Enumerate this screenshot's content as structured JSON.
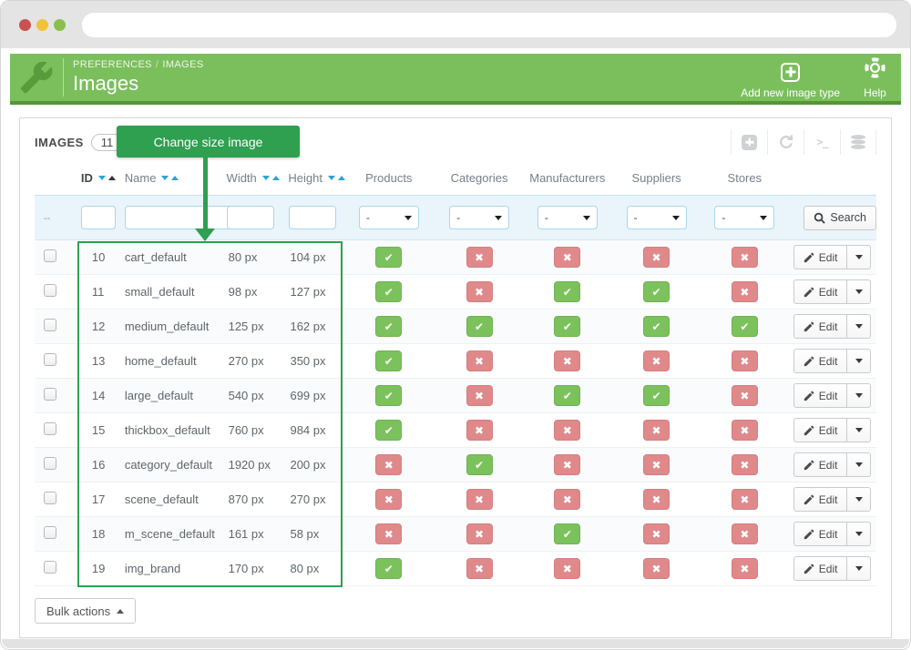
{
  "browser": {
    "url_value": "",
    "traffic_light_colors": {
      "close": "#c9524e",
      "minimize": "#f0c33c",
      "maximize": "#8abf4d"
    }
  },
  "header": {
    "breadcrumb": {
      "section": "PREFERENCES",
      "separator": "/",
      "page": "IMAGES"
    },
    "title": "Images",
    "add_button_label": "Add new image type",
    "help_label": "Help"
  },
  "annotation": {
    "tooltip_label": "Change size image",
    "color": "#2f9f50"
  },
  "panel": {
    "title": "IMAGES",
    "count_badge": "11",
    "toolbar": {
      "icons": [
        "add-icon",
        "refresh-icon",
        "terminal-icon",
        "database-icon"
      ],
      "terminal_glyph": ">_"
    }
  },
  "table": {
    "columns": [
      {
        "label": "ID",
        "sortable": true,
        "sorted": "asc"
      },
      {
        "label": "Name",
        "sortable": true
      },
      {
        "label": "Width",
        "sortable": true
      },
      {
        "label": "Height",
        "sortable": true
      },
      {
        "label": "Products",
        "sortable": false
      },
      {
        "label": "Categories",
        "sortable": false
      },
      {
        "label": "Manufacturers",
        "sortable": false
      },
      {
        "label": "Suppliers",
        "sortable": false
      },
      {
        "label": "Stores",
        "sortable": false
      }
    ],
    "filter": {
      "row_marker": "--",
      "select_value": "-",
      "search_button_label": "Search"
    },
    "edit_button_label": "Edit",
    "rows": [
      {
        "id": "10",
        "name": "cart_default",
        "width": "80 px",
        "height": "104 px",
        "flags": [
          true,
          false,
          false,
          false,
          false
        ]
      },
      {
        "id": "11",
        "name": "small_default",
        "width": "98 px",
        "height": "127 px",
        "flags": [
          true,
          false,
          true,
          true,
          false
        ]
      },
      {
        "id": "12",
        "name": "medium_default",
        "width": "125 px",
        "height": "162 px",
        "flags": [
          true,
          true,
          true,
          true,
          true
        ]
      },
      {
        "id": "13",
        "name": "home_default",
        "width": "270 px",
        "height": "350 px",
        "flags": [
          true,
          false,
          false,
          false,
          false
        ]
      },
      {
        "id": "14",
        "name": "large_default",
        "width": "540 px",
        "height": "699 px",
        "flags": [
          true,
          false,
          true,
          true,
          false
        ]
      },
      {
        "id": "15",
        "name": "thickbox_default",
        "width": "760 px",
        "height": "984 px",
        "flags": [
          true,
          false,
          false,
          false,
          false
        ]
      },
      {
        "id": "16",
        "name": "category_default",
        "width": "1920 px",
        "height": "200 px",
        "flags": [
          false,
          true,
          false,
          false,
          false
        ]
      },
      {
        "id": "17",
        "name": "scene_default",
        "width": "870 px",
        "height": "270 px",
        "flags": [
          false,
          false,
          false,
          false,
          false
        ]
      },
      {
        "id": "18",
        "name": "m_scene_default",
        "width": "161 px",
        "height": "58 px",
        "flags": [
          false,
          false,
          true,
          false,
          false
        ]
      },
      {
        "id": "19",
        "name": "img_brand",
        "width": "170 px",
        "height": "80 px",
        "flags": [
          true,
          false,
          false,
          false,
          false
        ]
      }
    ]
  },
  "footer": {
    "bulk_actions_label": "Bulk actions"
  },
  "colors": {
    "header_green": "#7bbf5c",
    "header_strip_green": "#549539",
    "annotation_green": "#2f9f50",
    "check_green": "#7cc25c",
    "cross_red": "#e0898b",
    "sort_blue": "#28a3d9",
    "filter_blue_bg": "#eaf4fb"
  }
}
